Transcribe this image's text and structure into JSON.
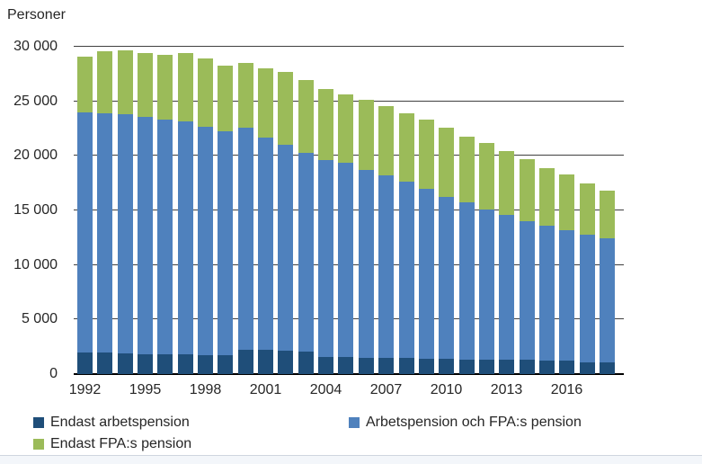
{
  "chart_data": {
    "type": "bar",
    "stacked": true,
    "ylabel": "Personer",
    "categories": [
      1992,
      1993,
      1994,
      1995,
      1996,
      1997,
      1998,
      1999,
      2000,
      2001,
      2002,
      2003,
      2004,
      2005,
      2006,
      2007,
      2008,
      2009,
      2010,
      2011,
      2012,
      2013,
      2014,
      2015,
      2016,
      2017,
      2018
    ],
    "series": [
      {
        "name": "Endast arbetspension",
        "color": "#1F4E79",
        "values": [
          1950,
          1950,
          1900,
          1850,
          1800,
          1800,
          1700,
          1700,
          2250,
          2200,
          2150,
          2100,
          1600,
          1600,
          1500,
          1500,
          1500,
          1400,
          1400,
          1350,
          1350,
          1350,
          1350,
          1250,
          1200,
          1050,
          1050
        ]
      },
      {
        "name": "Arbetspension och FPA:s pension",
        "color": "#4F81BD",
        "values": [
          22050,
          21950,
          21900,
          21750,
          21550,
          21400,
          20950,
          20550,
          20300,
          19500,
          18900,
          18200,
          18050,
          17750,
          17250,
          16750,
          16100,
          15600,
          14850,
          14400,
          13750,
          13250,
          12700,
          12350,
          11950,
          11700,
          11400
        ]
      },
      {
        "name": "Endast FPA:s pension",
        "color": "#9BBB59",
        "values": [
          5100,
          5650,
          5900,
          5800,
          5950,
          6200,
          6300,
          6000,
          6000,
          6350,
          6650,
          6650,
          6450,
          6300,
          6400,
          6300,
          6300,
          6350,
          6300,
          6050,
          6050,
          5850,
          5650,
          5250,
          5150,
          4750,
          4350
        ]
      }
    ],
    "totals": [
      29100,
      29550,
      29700,
      29400,
      29300,
      29400,
      28950,
      28250,
      28550,
      28050,
      27700,
      26950,
      26100,
      25650,
      25150,
      24550,
      23900,
      23350,
      22550,
      21800,
      21150,
      20450,
      19700,
      18850,
      18300,
      17500,
      16800
    ],
    "ylim": [
      0,
      30000
    ],
    "y_ticks": [
      {
        "value": 0,
        "label": "0"
      },
      {
        "value": 5000,
        "label": "5 000"
      },
      {
        "value": 10000,
        "label": "10 000"
      },
      {
        "value": 15000,
        "label": "15 000"
      },
      {
        "value": 20000,
        "label": "20 000"
      },
      {
        "value": 25000,
        "label": "25 000"
      },
      {
        "value": 30000,
        "label": "30 000"
      }
    ],
    "x_tick_labels": [
      "1992",
      "1995",
      "1998",
      "2001",
      "2004",
      "2007",
      "2010",
      "2013",
      "2016"
    ],
    "x_tick_every": 3,
    "grid": "horizontal",
    "legend_position": "bottom"
  },
  "legend": {
    "items": [
      {
        "label": "Endast arbetspension",
        "color": "#1F4E79"
      },
      {
        "label": "Arbetspension och FPA:s pension",
        "color": "#4F81BD"
      },
      {
        "label": "Endast FPA:s pension",
        "color": "#9BBB59"
      }
    ]
  }
}
